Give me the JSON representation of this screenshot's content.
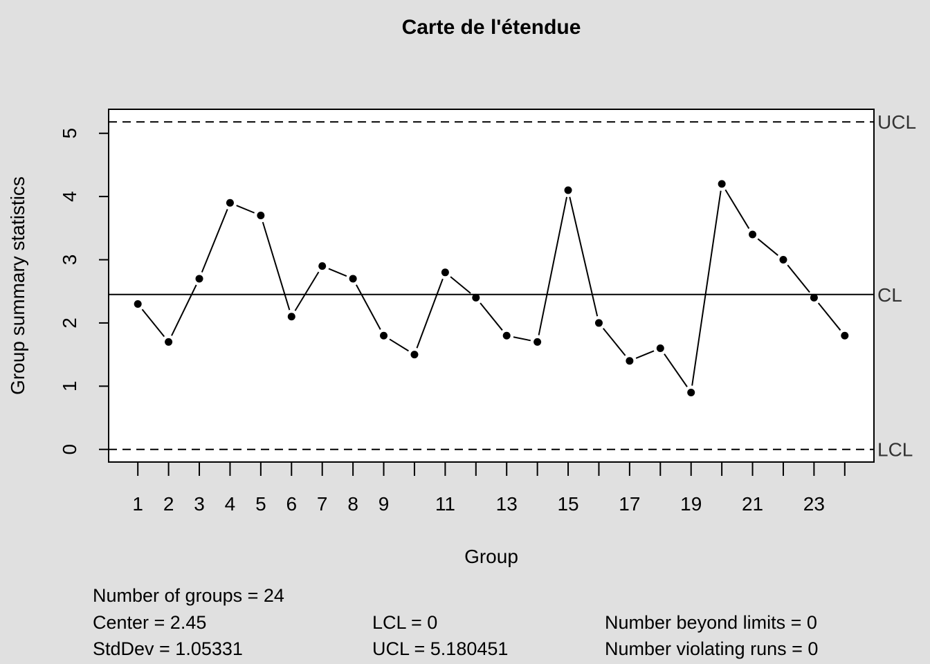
{
  "chart_data": {
    "type": "line",
    "title": "Carte de l'étendue",
    "xlabel": "Group",
    "ylabel": "Group summary statistics",
    "x": [
      1,
      2,
      3,
      4,
      5,
      6,
      7,
      8,
      9,
      10,
      11,
      12,
      13,
      14,
      15,
      16,
      17,
      18,
      19,
      20,
      21,
      22,
      23,
      24
    ],
    "values": [
      2.3,
      1.7,
      2.7,
      3.9,
      3.7,
      2.1,
      2.9,
      2.7,
      1.8,
      1.5,
      2.8,
      2.4,
      1.8,
      1.7,
      4.1,
      2.0,
      1.4,
      1.6,
      0.9,
      4.2,
      3.4,
      3.0,
      2.4,
      1.8
    ],
    "xlim": [
      0.05,
      24.95
    ],
    "ylim": [
      -0.2,
      5.38
    ],
    "x_tick_labels": [
      "1",
      "2",
      "3",
      "4",
      "5",
      "6",
      "7",
      "8",
      "9",
      "",
      "11",
      "",
      "13",
      "",
      "15",
      "",
      "17",
      "",
      "19",
      "",
      "21",
      "",
      "23",
      ""
    ],
    "y_ticks": [
      0,
      1,
      2,
      3,
      4,
      5
    ],
    "y_tick_labels": [
      "0",
      "1",
      "2",
      "3",
      "4",
      "5"
    ],
    "center": 2.45,
    "lcl": 0,
    "ucl": 5.180451,
    "limit_labels": {
      "ucl": "UCL",
      "cl": "CL",
      "lcl": "LCL"
    },
    "grid": false,
    "marker_color": "#000000"
  },
  "stats": {
    "n_groups": "Number of groups = 24",
    "center": "Center = 2.45",
    "stddev": "StdDev = 1.05331",
    "lcl": "LCL = 0",
    "ucl": "UCL = 5.180451",
    "beyond": "Number beyond limits = 0",
    "violating": "Number violating runs = 0"
  }
}
